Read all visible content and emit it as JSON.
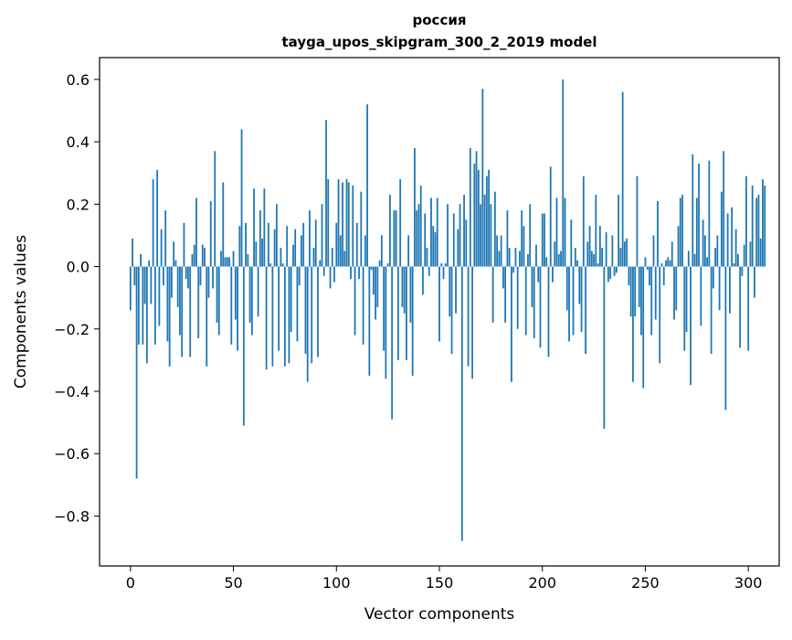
{
  "chart_data": {
    "type": "bar",
    "title": "россия",
    "subtitle": "tayga_upos_skipgram_300_2_2019 model",
    "xlabel": "Vector components",
    "ylabel": "Components values",
    "xlim": [
      -15,
      315
    ],
    "ylim": [
      -0.96,
      0.67
    ],
    "xticks": [
      0,
      50,
      100,
      150,
      200,
      250,
      300
    ],
    "xtick_labels": [
      "0",
      "50",
      "100",
      "150",
      "200",
      "250",
      "300"
    ],
    "yticks": [
      -0.8,
      -0.6,
      -0.4,
      -0.2,
      0.0,
      0.2,
      0.4,
      0.6
    ],
    "ytick_labels": [
      "−0.8",
      "−0.6",
      "−0.4",
      "−0.2",
      "0.0",
      "0.2",
      "0.4",
      "0.6"
    ],
    "bar_color": "#1f77b4",
    "values": [
      -0.14,
      0.09,
      -0.06,
      -0.68,
      -0.25,
      0.04,
      -0.25,
      -0.12,
      -0.31,
      0.02,
      -0.12,
      0.28,
      -0.25,
      0.31,
      -0.19,
      0.12,
      -0.06,
      0.18,
      -0.24,
      -0.32,
      -0.1,
      0.08,
      0.02,
      -0.13,
      -0.22,
      -0.29,
      0.14,
      -0.04,
      -0.07,
      -0.29,
      0.04,
      0.07,
      0.22,
      -0.23,
      -0.06,
      0.07,
      0.06,
      -0.32,
      -0.1,
      0.21,
      -0.07,
      0.37,
      -0.18,
      -0.22,
      0.05,
      0.27,
      0.03,
      0.03,
      0.03,
      -0.25,
      0.05,
      -0.17,
      -0.27,
      0.13,
      0.44,
      -0.51,
      0.14,
      0.04,
      -0.18,
      -0.22,
      0.25,
      0.08,
      -0.16,
      0.18,
      0.09,
      0.25,
      -0.33,
      0.14,
      0.01,
      -0.32,
      0.12,
      0.2,
      -0.27,
      0.06,
      0.01,
      -0.32,
      0.13,
      -0.31,
      -0.21,
      0.07,
      0.12,
      -0.24,
      -0.06,
      0.1,
      0.14,
      -0.28,
      -0.37,
      0.18,
      -0.31,
      0.06,
      0.15,
      -0.29,
      0.02,
      0.2,
      -0.03,
      0.47,
      0.28,
      -0.07,
      0.06,
      -0.05,
      0.14,
      0.28,
      0.1,
      0.27,
      0.05,
      0.28,
      0.27,
      -0.04,
      0.26,
      -0.22,
      0.14,
      -0.04,
      0.24,
      -0.25,
      0.1,
      0.52,
      -0.35,
      -0.01,
      -0.09,
      -0.17,
      -0.13,
      0.02,
      0.1,
      -0.27,
      -0.36,
      0.01,
      0.23,
      -0.49,
      0.18,
      0.18,
      -0.3,
      0.28,
      -0.13,
      -0.15,
      -0.3,
      0.1,
      -0.18,
      -0.35,
      0.38,
      0.18,
      0.2,
      0.26,
      -0.09,
      0.17,
      0.06,
      -0.03,
      0.22,
      0.13,
      0.11,
      0.22,
      -0.24,
      0.01,
      -0.04,
      0.01,
      0.2,
      -0.16,
      -0.28,
      0.17,
      -0.15,
      0.12,
      0.2,
      -0.88,
      0.23,
      0.15,
      -0.32,
      0.38,
      -0.36,
      0.33,
      0.37,
      0.31,
      0.2,
      0.57,
      0.23,
      0.29,
      0.31,
      0.2,
      -0.18,
      0.24,
      0.1,
      0.05,
      0.1,
      -0.07,
      -0.18,
      0.18,
      0.06,
      -0.37,
      -0.02,
      0.06,
      -0.2,
      0.05,
      0.18,
      0.13,
      -0.22,
      0.04,
      0.2,
      -0.13,
      -0.23,
      0.07,
      -0.05,
      -0.26,
      0.17,
      0.17,
      0.03,
      -0.29,
      0.32,
      -0.05,
      0.08,
      0.22,
      0.04,
      0.05,
      0.6,
      0.22,
      -0.14,
      -0.24,
      0.15,
      -0.22,
      0.06,
      0.02,
      -0.12,
      -0.21,
      0.29,
      -0.28,
      0.08,
      0.13,
      0.05,
      0.04,
      0.23,
      0.01,
      0.13,
      0.06,
      -0.52,
      0.11,
      -0.05,
      -0.04,
      0.1,
      -0.03,
      -0.02,
      0.23,
      0.06,
      0.56,
      0.08,
      0.09,
      -0.06,
      -0.16,
      -0.37,
      -0.16,
      0.29,
      -0.13,
      -0.22,
      -0.39,
      0.03,
      -0.01,
      -0.06,
      -0.22,
      0.1,
      -0.17,
      0.21,
      -0.31,
      0.01,
      -0.06,
      0.02,
      0.03,
      0.02,
      0.08,
      -0.17,
      -0.14,
      0.13,
      0.22,
      0.23,
      -0.27,
      -0.21,
      0.05,
      -0.38,
      0.36,
      0.04,
      0.22,
      0.33,
      -0.19,
      0.15,
      0.1,
      0.03,
      0.34,
      -0.28,
      -0.07,
      0.06,
      0.1,
      -0.14,
      0.24,
      0.37,
      -0.46,
      0.17,
      -0.15,
      0.19,
      0.01,
      0.12,
      0.04,
      -0.26,
      -0.03,
      0.07,
      0.29,
      -0.27,
      0.08,
      0.26,
      -0.1,
      0.22,
      0.23,
      0.09,
      0.28,
      0.26
    ]
  }
}
